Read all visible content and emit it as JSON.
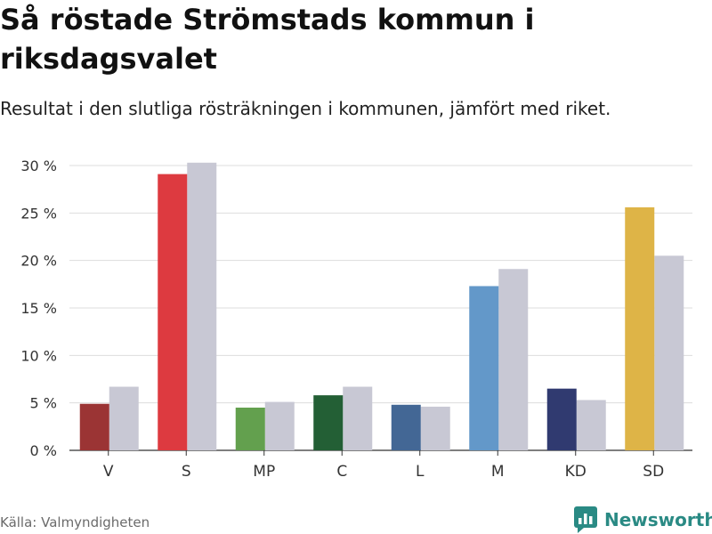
{
  "title": "Så röstade Strömstads kommun i riksdagsvalet",
  "subtitle": "Resultat i den slutliga rösträkningen i kommunen, jämfört med riket.",
  "source": "Källa: Valmyndigheten",
  "brand": "Newsworthy",
  "chart_data": {
    "type": "bar",
    "title": "Så röstade Strömstads kommun i riksdagsvalet",
    "xlabel": "",
    "ylabel": "",
    "ylim": [
      0,
      30
    ],
    "yticks": [
      0,
      5,
      10,
      15,
      20,
      25,
      30
    ],
    "ytick_labels": [
      "0 %",
      "5 %",
      "10 %",
      "15 %",
      "20 %",
      "25 %",
      "30 %"
    ],
    "grid": true,
    "categories": [
      "V",
      "S",
      "MP",
      "C",
      "L",
      "M",
      "KD",
      "SD"
    ],
    "series": [
      {
        "name": "Strömstads kommun",
        "values": [
          4.9,
          29.1,
          4.5,
          5.8,
          4.8,
          17.3,
          6.5,
          25.6
        ]
      },
      {
        "name": "Riket",
        "values": [
          6.7,
          30.3,
          5.1,
          6.7,
          4.6,
          19.1,
          5.3,
          20.5
        ]
      }
    ],
    "party_colors": [
      "#9b3434",
      "#dd3a40",
      "#63a04e",
      "#235f35",
      "#436795",
      "#6398c9",
      "#303a70",
      "#deb447"
    ],
    "national_color": "#c8c8d4"
  }
}
